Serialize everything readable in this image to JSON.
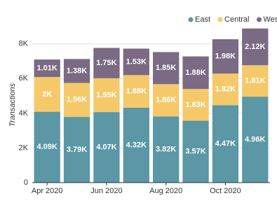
{
  "chart_data": {
    "type": "stacked_bar",
    "y_label": "Transactions",
    "categories": [
      "Apr 2020",
      null,
      "Jun 2020",
      null,
      "Aug 2020",
      null,
      "Oct 2020",
      null
    ],
    "series": [
      {
        "name": "East",
        "color": "#5b97a5",
        "values": [
          4090,
          3790,
          4070,
          4320,
          3820,
          3570,
          4470,
          4960
        ],
        "value_labels": [
          "4.09K",
          "3.79K",
          "4.07K",
          "4.32K",
          "3.82K",
          "3.57K",
          "4.47K",
          "4.96K"
        ]
      },
      {
        "name": "Central",
        "color": "#f5c96a",
        "values": [
          2000,
          1960,
          1950,
          1880,
          1860,
          1830,
          1820,
          1810
        ],
        "value_labels": [
          "2K",
          "1.96K",
          "1.95K",
          "1.88K",
          "1.86K",
          "1.83K",
          "1.82K",
          "1.81K"
        ]
      },
      {
        "name": "West",
        "color": "#7a6a83",
        "values": [
          1010,
          1380,
          1750,
          1530,
          1850,
          1880,
          1980,
          2120
        ],
        "value_labels": [
          "1.01K",
          "1.38K",
          "1.75K",
          "1.53K",
          "1.85K",
          "1.88K",
          "1.98K",
          "2.12K"
        ]
      }
    ],
    "ylim": [
      0,
      9000
    ],
    "yticks": [
      0,
      {
        "value": 2000,
        "label": "2K"
      },
      {
        "value": 4000,
        "label": "4K"
      },
      {
        "value": 6000,
        "label": "6K"
      },
      {
        "value": 8000,
        "label": "8K"
      }
    ],
    "grid": true,
    "legend": "top-right"
  }
}
